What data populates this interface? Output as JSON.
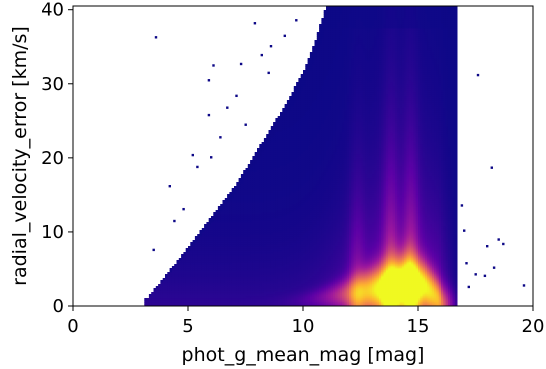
{
  "chart_data": {
    "type": "heatmap",
    "xlabel": "phot_g_mean_mag [mag]",
    "ylabel": "radial_velocity_error [km/s]",
    "xlim": [
      0,
      20
    ],
    "ylim": [
      0,
      40.5
    ],
    "xticks": [
      0,
      5,
      10,
      15,
      20
    ],
    "yticks": [
      0,
      10,
      20,
      30,
      40
    ],
    "colormap": "plasma",
    "colormap_stops": [
      "#0d0887",
      "#5c01a6",
      "#9c179e",
      "#cc4778",
      "#ed7953",
      "#fdb42f",
      "#f0f921"
    ],
    "grid": false,
    "legend": "none",
    "density_ridge": {
      "x": [
        3.2,
        5,
        7,
        9,
        10,
        11,
        12,
        13,
        14,
        14.6,
        15.3,
        15.8,
        16.1
      ],
      "y": [
        0.1,
        0.2,
        0.4,
        0.6,
        0.9,
        1.3,
        1.8,
        2.3,
        2.9,
        3.5,
        2.8,
        1.4,
        0.3
      ]
    },
    "density_vertical_bands_x": [
      12.3,
      13.8,
      14.7
    ],
    "upper_envelope": {
      "x": [
        3.2,
        4,
        5,
        6,
        7,
        8,
        9,
        10,
        10.5,
        11
      ],
      "y": [
        1,
        4,
        8,
        12,
        16,
        21,
        26,
        31.5,
        35.5,
        40.5
      ]
    },
    "outliers": [
      [
        3.6,
        36.3
      ],
      [
        5.4,
        18.8
      ],
      [
        5.9,
        25.8
      ],
      [
        6.1,
        32.5
      ],
      [
        5.9,
        30.5
      ],
      [
        8.5,
        31.5
      ],
      [
        9.2,
        36.5
      ],
      [
        7.1,
        28.4
      ],
      [
        6.4,
        22.8
      ],
      [
        4.2,
        16.2
      ],
      [
        3.5,
        7.6
      ],
      [
        17.6,
        31.2
      ],
      [
        18.2,
        18.7
      ],
      [
        18.7,
        8.4
      ],
      [
        18.3,
        5.2
      ],
      [
        17.1,
        5.8
      ],
      [
        17.2,
        2.6
      ],
      [
        17.5,
        4.3
      ],
      [
        19.6,
        2.8
      ],
      [
        18.0,
        8.1
      ],
      [
        17.0,
        10.2
      ],
      [
        16.9,
        13.6
      ],
      [
        18.5,
        9.0
      ],
      [
        17.9,
        4.1
      ],
      [
        7.5,
        24.5
      ],
      [
        7.9,
        38.2
      ],
      [
        8.6,
        35.1
      ],
      [
        6.7,
        26.8
      ],
      [
        4.8,
        13.1
      ],
      [
        4.4,
        11.5
      ],
      [
        5.2,
        20.4
      ],
      [
        6.0,
        20.1
      ],
      [
        9.7,
        38.6
      ],
      [
        8.2,
        33.9
      ],
      [
        7.3,
        32.7
      ]
    ]
  }
}
